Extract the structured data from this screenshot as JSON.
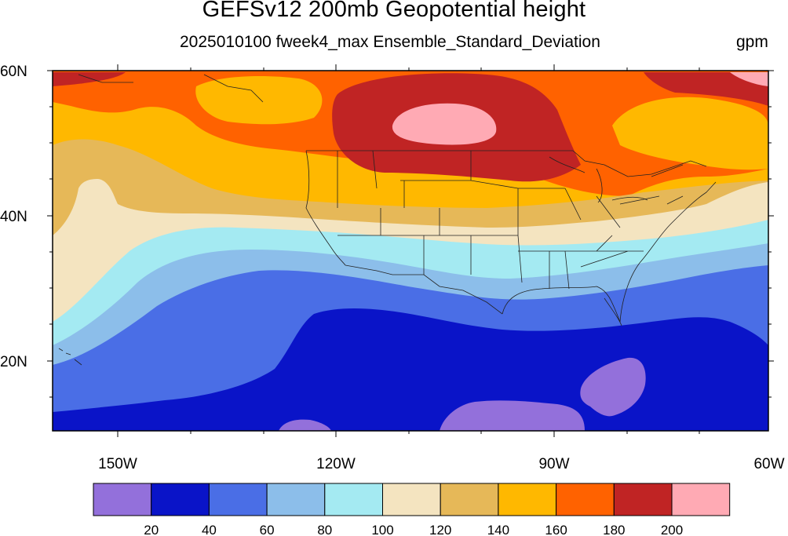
{
  "title": "GEFSv12 200mb Geopotential height",
  "subtitle": "2025010100 fweek4_max Ensemble_Standard_Deviation",
  "units": "gpm",
  "map": {
    "projection": "cylindrical equidistant",
    "lon_range": [
      -159,
      -60
    ],
    "lat_range": [
      10,
      60
    ],
    "lat_ticks": [
      {
        "value": 60,
        "label": "60N"
      },
      {
        "value": 40,
        "label": "40N"
      },
      {
        "value": 20,
        "label": "20N"
      }
    ],
    "lon_ticks": [
      {
        "value": -150,
        "label": "150W"
      },
      {
        "value": -120,
        "label": "120W"
      },
      {
        "value": -90,
        "label": "90W"
      },
      {
        "value": -60,
        "label": "60W"
      }
    ]
  },
  "colorbar": {
    "levels": [
      "20",
      "40",
      "60",
      "80",
      "100",
      "120",
      "140",
      "160",
      "180",
      "200"
    ],
    "colors": [
      "#9370db",
      "#0a14c8",
      "#4a6ee6",
      "#8cbeea",
      "#a4eaf2",
      "#f4e4c0",
      "#e6b858",
      "#ffb800",
      "#ff6200",
      "#c02424",
      "#ffaab4"
    ]
  }
}
